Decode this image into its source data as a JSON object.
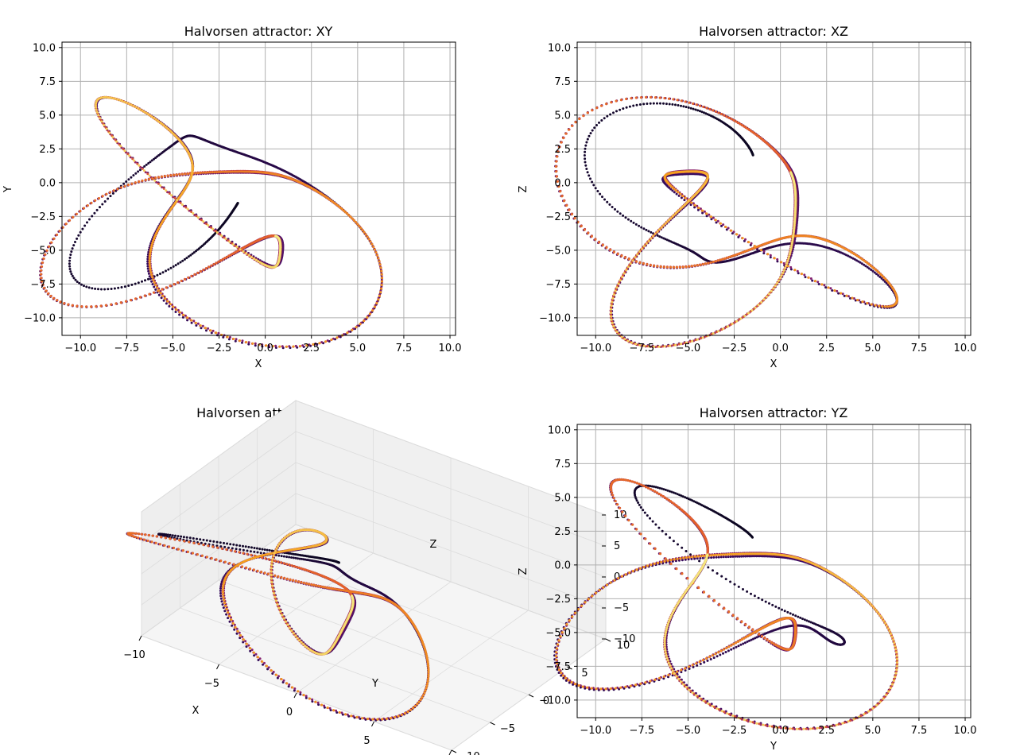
{
  "chart_data": [
    {
      "type": "scatter",
      "projection": "XY",
      "title": "Halvorsen attractor: XY",
      "xlabel": "X",
      "ylabel": "Y",
      "xlim": [
        -11.0,
        10.3
      ],
      "ylim": [
        -11.3,
        10.4
      ],
      "xticks": [
        "−10.0",
        "−7.5",
        "−5.0",
        "−2.5",
        "0.0",
        "2.5",
        "5.0",
        "7.5",
        "10.0"
      ],
      "yticks": [
        "−10.0",
        "−7.5",
        "−5.0",
        "−2.5",
        "0.0",
        "2.5",
        "5.0",
        "7.5",
        "10.0"
      ],
      "grid": true,
      "colormap": "inferno",
      "color_by": "point index"
    },
    {
      "type": "scatter",
      "projection": "XZ",
      "title": "Halvorsen attractor: XZ",
      "xlabel": "X",
      "ylabel": "Z",
      "xlim": [
        -11.0,
        10.3
      ],
      "ylim": [
        -11.3,
        10.4
      ],
      "xticks": [
        "−10.0",
        "−7.5",
        "−5.0",
        "−2.5",
        "0.0",
        "2.5",
        "5.0",
        "7.5",
        "10.0"
      ],
      "yticks": [
        "−10.0",
        "−7.5",
        "−5.0",
        "−2.5",
        "0.0",
        "2.5",
        "5.0",
        "7.5",
        "10.0"
      ],
      "grid": true,
      "colormap": "inferno",
      "color_by": "point index"
    },
    {
      "type": "scatter3d",
      "projection": "XYZ",
      "title": "Halvorsen attractor",
      "xlabel": "X",
      "ylabel": "Y",
      "zlabel": "Z",
      "xticks": [
        "−10",
        "−5",
        "0",
        "5",
        "10"
      ],
      "yticks": [
        "−10",
        "−5",
        "0",
        "5",
        "10"
      ],
      "zticks": [
        "−10",
        "−5",
        "0",
        "5",
        "10"
      ],
      "colormap": "inferno",
      "color_by": "point index"
    },
    {
      "type": "scatter",
      "projection": "YZ",
      "title": "Halvorsen attractor: YZ",
      "xlabel": "Y",
      "ylabel": "Z",
      "xlim": [
        -11.0,
        10.3
      ],
      "ylim": [
        -11.3,
        10.4
      ],
      "xticks": [
        "−10.0",
        "−7.5",
        "−5.0",
        "−2.5",
        "0.0",
        "2.5",
        "5.0",
        "7.5",
        "10.0"
      ],
      "yticks": [
        "−10.0",
        "−7.5",
        "−5.0",
        "−2.5",
        "0.0",
        "2.5",
        "5.0",
        "7.5",
        "10.0"
      ],
      "grid": true,
      "colormap": "inferno",
      "color_by": "point index"
    }
  ],
  "attractor": {
    "equations": "dx/dt = -a·x - 4y - 4z - y², dy/dt = -a·y - 4z - 4x - z², dz/dt = -a·z - 4x - 4y - x²",
    "a": 1.89,
    "initial_state": [
      -1.48,
      -1.51,
      2.04
    ],
    "dt": 0.005,
    "plotted_points": 2600
  },
  "colors": {
    "grid": "#b0b0b0",
    "axes": "#000000",
    "pane": "#f2f2f2",
    "pane_edge": "#dcdcdc"
  }
}
